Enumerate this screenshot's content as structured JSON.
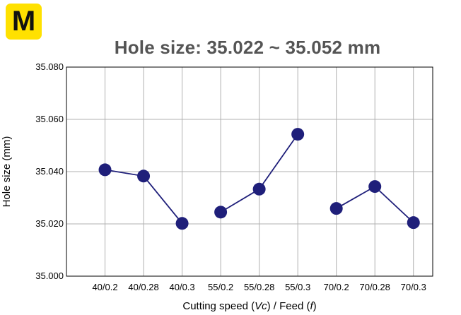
{
  "badge": {
    "letter": "M",
    "color": "#ffe100"
  },
  "chart_data": {
    "type": "line",
    "title": "Hole size: 35.022 ~ 35.052 mm",
    "xlabel": "Cutting speed (Vc) / Feed (f)",
    "xlabel_parts": [
      {
        "text": "Cutting speed (",
        "italic": false
      },
      {
        "text": "Vc",
        "italic": true
      },
      {
        "text": ") / Feed (",
        "italic": false
      },
      {
        "text": "f",
        "italic": true
      },
      {
        "text": ")",
        "italic": false
      }
    ],
    "ylabel": "Hole size (mm)",
    "categories": [
      "40/0.2",
      "40/0.28",
      "40/0.3",
      "55/0.2",
      "55/0.28",
      "55/0.3",
      "70/0.2",
      "70/0.28",
      "70/0.3"
    ],
    "ylim": [
      35.0,
      35.08
    ],
    "yticks": [
      "35.000",
      "35.020",
      "35.040",
      "35.060",
      "35.080"
    ],
    "grid": true,
    "groups": [
      {
        "values": [
          35.0407,
          35.0383,
          35.0202
        ]
      },
      {
        "values": [
          35.0245,
          35.0333,
          35.0543
        ]
      },
      {
        "values": [
          35.0259,
          35.0343,
          35.0205
        ]
      }
    ],
    "colors": {
      "series": "#1f1f7a",
      "grid": "#b0b0b0",
      "axis": "#000000"
    }
  }
}
